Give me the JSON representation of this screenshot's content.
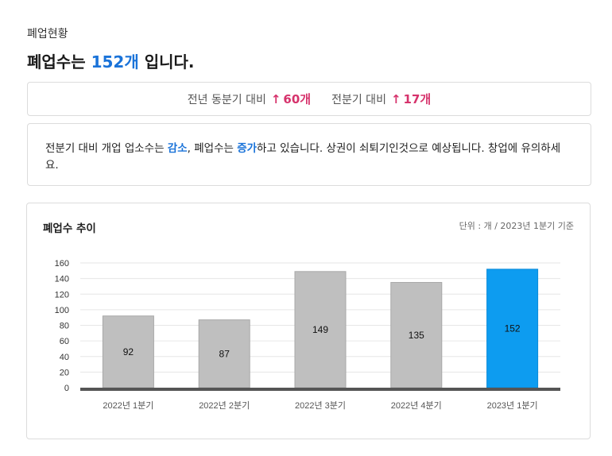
{
  "header": {
    "section_label": "폐업현황",
    "headline_prefix": "폐업수는 ",
    "headline_value": "152개",
    "headline_suffix": " 입니다."
  },
  "comparison": {
    "yoy_label": "전년 동분기 대비",
    "yoy_value": "60개",
    "qoq_label": "전분기 대비",
    "qoq_value": "17개",
    "accent_color": "#d6336c"
  },
  "description": {
    "part1": "전분기 대비 개업 업소수는 ",
    "kw1": "감소",
    "part2": ", 폐업수는 ",
    "kw2": "증가",
    "part3": "하고 있습니다. 상권이 쇠퇴기인것으로 예상됩니다. 창업에 유의하세요."
  },
  "chart_data": {
    "type": "bar",
    "title": "폐업수 추이",
    "unit_note": "단위 : 개 / 2023년 1분기 기준",
    "categories": [
      "2022년 1분기",
      "2022년 2분기",
      "2022년 3분기",
      "2022년 4분기",
      "2023년 1분기"
    ],
    "values": [
      92,
      87,
      149,
      135,
      152
    ],
    "highlight_index": 4,
    "bar_color": "#bfbfbf",
    "highlight_color": "#0d9cf0",
    "ylim": [
      0,
      160
    ],
    "yticks": [
      0,
      20,
      40,
      60,
      80,
      100,
      120,
      140,
      160
    ],
    "grid": true
  }
}
